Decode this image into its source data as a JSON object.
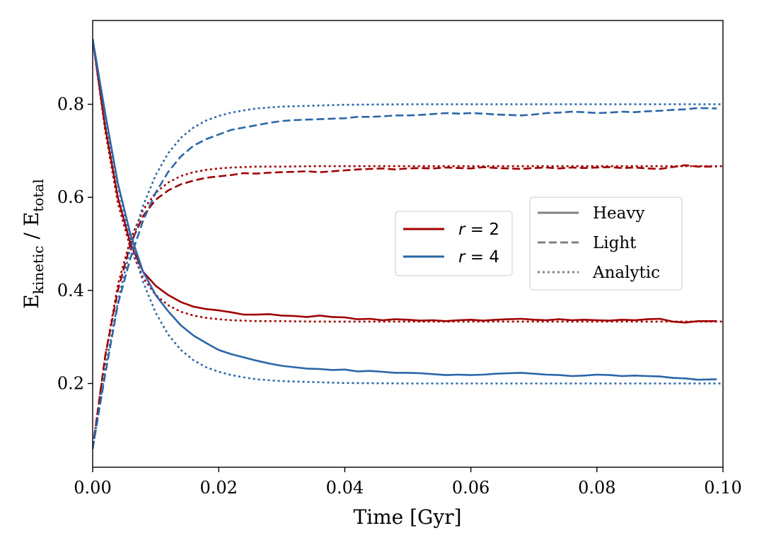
{
  "chart_data": {
    "type": "line",
    "xlabel": "Time [Gyr]",
    "ylabel": {
      "prefix": "E",
      "sub1": "kinetic",
      "sep": " / E",
      "sub2": "total"
    },
    "xlim": [
      0.0,
      0.1
    ],
    "ylim": [
      0.02,
      0.98
    ],
    "xticks": [
      0.0,
      0.02,
      0.04,
      0.06,
      0.08,
      0.1
    ],
    "xtick_labels": [
      "0.00",
      "0.02",
      "0.04",
      "0.06",
      "0.08",
      "0.10"
    ],
    "yticks": [
      0.2,
      0.4,
      0.6,
      0.8
    ],
    "ytick_labels": [
      "0.2",
      "0.4",
      "0.6",
      "0.8"
    ],
    "grid": false,
    "colors": {
      "r2": "#a00000",
      "r4": "#2a66a8",
      "style_key": "#808080"
    },
    "legend_ratio": {
      "placement": "center",
      "entries": [
        {
          "series": "r2",
          "prefix": "r",
          "value": " = 2"
        },
        {
          "series": "r4",
          "prefix": "r",
          "value": " = 4"
        }
      ]
    },
    "legend_style": {
      "placement": "center-right",
      "entries": [
        {
          "style": "solid",
          "label": "Heavy"
        },
        {
          "style": "dashed",
          "label": "Light"
        },
        {
          "style": "dotted",
          "label": "Analytic"
        }
      ]
    },
    "series": [
      {
        "id": "r2-heavy",
        "group": "r2",
        "style": "solid",
        "x": [
          0.0,
          0.002,
          0.004,
          0.006,
          0.008,
          0.01,
          0.012,
          0.014,
          0.016,
          0.018,
          0.02,
          0.022,
          0.024,
          0.026,
          0.028,
          0.03,
          0.032,
          0.034,
          0.036,
          0.038,
          0.04,
          0.042,
          0.044,
          0.046,
          0.048,
          0.05,
          0.052,
          0.054,
          0.056,
          0.058,
          0.06,
          0.062,
          0.064,
          0.066,
          0.068,
          0.07,
          0.072,
          0.074,
          0.076,
          0.078,
          0.08,
          0.082,
          0.084,
          0.086,
          0.088,
          0.09,
          0.092,
          0.094,
          0.096,
          0.099
        ],
        "y": [
          0.94,
          0.75,
          0.6,
          0.5,
          0.44,
          0.41,
          0.39,
          0.375,
          0.365,
          0.36,
          0.357,
          0.353,
          0.348,
          0.348,
          0.349,
          0.346,
          0.345,
          0.343,
          0.346,
          0.343,
          0.342,
          0.338,
          0.339,
          0.336,
          0.338,
          0.337,
          0.335,
          0.336,
          0.334,
          0.336,
          0.337,
          0.335,
          0.337,
          0.338,
          0.339,
          0.337,
          0.336,
          0.338,
          0.336,
          0.337,
          0.336,
          0.335,
          0.337,
          0.336,
          0.338,
          0.339,
          0.333,
          0.331,
          0.334,
          0.334
        ]
      },
      {
        "id": "r2-light",
        "group": "r2",
        "style": "dashed",
        "x": [
          0.0,
          0.002,
          0.004,
          0.006,
          0.008,
          0.01,
          0.012,
          0.014,
          0.016,
          0.018,
          0.02,
          0.022,
          0.024,
          0.026,
          0.028,
          0.03,
          0.032,
          0.034,
          0.036,
          0.038,
          0.04,
          0.042,
          0.044,
          0.046,
          0.048,
          0.05,
          0.052,
          0.054,
          0.056,
          0.058,
          0.06,
          0.062,
          0.064,
          0.066,
          0.068,
          0.07,
          0.072,
          0.074,
          0.076,
          0.078,
          0.08,
          0.082,
          0.084,
          0.086,
          0.088,
          0.09,
          0.092,
          0.094,
          0.096,
          0.099
        ],
        "y": [
          0.06,
          0.26,
          0.4,
          0.5,
          0.56,
          0.595,
          0.615,
          0.628,
          0.636,
          0.642,
          0.645,
          0.648,
          0.652,
          0.651,
          0.653,
          0.654,
          0.655,
          0.656,
          0.654,
          0.656,
          0.658,
          0.66,
          0.661,
          0.662,
          0.66,
          0.662,
          0.663,
          0.662,
          0.664,
          0.663,
          0.662,
          0.665,
          0.663,
          0.662,
          0.661,
          0.663,
          0.664,
          0.662,
          0.664,
          0.663,
          0.664,
          0.665,
          0.663,
          0.664,
          0.662,
          0.661,
          0.665,
          0.669,
          0.666,
          0.666
        ]
      },
      {
        "id": "r2-analytic",
        "group": "r2",
        "style": "dotted",
        "x": [
          0.0,
          0.002,
          0.004,
          0.006,
          0.008,
          0.01,
          0.012,
          0.014,
          0.016,
          0.018,
          0.02,
          0.022,
          0.024,
          0.026,
          0.028,
          0.03,
          0.035,
          0.04,
          0.05,
          0.06,
          0.07,
          0.08,
          0.09,
          0.1
        ],
        "y": [
          0.94,
          0.742,
          0.588,
          0.49,
          0.427,
          0.39,
          0.368,
          0.354,
          0.346,
          0.341,
          0.338,
          0.336,
          0.335,
          0.334,
          0.334,
          0.334,
          0.333,
          0.333,
          0.333,
          0.333,
          0.333,
          0.333,
          0.333,
          0.333
        ]
      },
      {
        "id": "r2-analytic-light",
        "group": "r2",
        "style": "dotted",
        "x": [
          0.0,
          0.002,
          0.004,
          0.006,
          0.008,
          0.01,
          0.012,
          0.014,
          0.016,
          0.018,
          0.02,
          0.022,
          0.024,
          0.026,
          0.028,
          0.03,
          0.035,
          0.04,
          0.05,
          0.06,
          0.07,
          0.08,
          0.09,
          0.1
        ],
        "y": [
          0.06,
          0.258,
          0.412,
          0.51,
          0.573,
          0.61,
          0.632,
          0.646,
          0.654,
          0.659,
          0.662,
          0.664,
          0.665,
          0.666,
          0.666,
          0.666,
          0.667,
          0.667,
          0.667,
          0.667,
          0.667,
          0.667,
          0.667,
          0.667
        ]
      },
      {
        "id": "r4-heavy",
        "group": "r4",
        "style": "solid",
        "x": [
          0.0,
          0.002,
          0.004,
          0.006,
          0.008,
          0.01,
          0.012,
          0.014,
          0.016,
          0.018,
          0.02,
          0.022,
          0.024,
          0.026,
          0.028,
          0.03,
          0.032,
          0.034,
          0.036,
          0.038,
          0.04,
          0.042,
          0.044,
          0.046,
          0.048,
          0.05,
          0.052,
          0.054,
          0.056,
          0.058,
          0.06,
          0.062,
          0.064,
          0.066,
          0.068,
          0.07,
          0.072,
          0.074,
          0.076,
          0.078,
          0.08,
          0.082,
          0.084,
          0.086,
          0.088,
          0.09,
          0.092,
          0.094,
          0.096,
          0.099
        ],
        "y": [
          0.94,
          0.78,
          0.63,
          0.52,
          0.44,
          0.39,
          0.355,
          0.325,
          0.303,
          0.287,
          0.272,
          0.263,
          0.256,
          0.249,
          0.243,
          0.238,
          0.235,
          0.232,
          0.231,
          0.229,
          0.23,
          0.226,
          0.227,
          0.225,
          0.223,
          0.223,
          0.222,
          0.22,
          0.218,
          0.219,
          0.218,
          0.219,
          0.221,
          0.222,
          0.223,
          0.221,
          0.219,
          0.218,
          0.216,
          0.217,
          0.219,
          0.218,
          0.216,
          0.217,
          0.216,
          0.215,
          0.212,
          0.211,
          0.208,
          0.209
        ]
      },
      {
        "id": "r4-light",
        "group": "r4",
        "style": "dashed",
        "x": [
          0.0,
          0.002,
          0.004,
          0.006,
          0.008,
          0.01,
          0.012,
          0.014,
          0.016,
          0.018,
          0.02,
          0.022,
          0.024,
          0.026,
          0.028,
          0.03,
          0.032,
          0.034,
          0.036,
          0.038,
          0.04,
          0.042,
          0.044,
          0.046,
          0.048,
          0.05,
          0.052,
          0.054,
          0.056,
          0.058,
          0.06,
          0.062,
          0.064,
          0.066,
          0.068,
          0.07,
          0.072,
          0.074,
          0.076,
          0.078,
          0.08,
          0.082,
          0.084,
          0.086,
          0.088,
          0.09,
          0.092,
          0.094,
          0.096,
          0.099
        ],
        "y": [
          0.06,
          0.22,
          0.37,
          0.47,
          0.55,
          0.61,
          0.655,
          0.688,
          0.711,
          0.725,
          0.735,
          0.745,
          0.75,
          0.755,
          0.76,
          0.764,
          0.766,
          0.767,
          0.768,
          0.769,
          0.77,
          0.773,
          0.773,
          0.774,
          0.776,
          0.776,
          0.777,
          0.779,
          0.781,
          0.78,
          0.781,
          0.78,
          0.778,
          0.777,
          0.776,
          0.778,
          0.781,
          0.782,
          0.784,
          0.783,
          0.781,
          0.782,
          0.784,
          0.783,
          0.785,
          0.786,
          0.788,
          0.789,
          0.792,
          0.791
        ]
      },
      {
        "id": "r4-analytic",
        "group": "r4",
        "style": "dotted",
        "x": [
          0.0,
          0.002,
          0.004,
          0.006,
          0.008,
          0.01,
          0.012,
          0.014,
          0.016,
          0.018,
          0.02,
          0.022,
          0.024,
          0.026,
          0.028,
          0.03,
          0.035,
          0.04,
          0.05,
          0.06,
          0.07,
          0.08,
          0.09,
          0.1
        ],
        "y": [
          0.94,
          0.768,
          0.625,
          0.508,
          0.418,
          0.352,
          0.305,
          0.272,
          0.25,
          0.235,
          0.225,
          0.218,
          0.213,
          0.209,
          0.207,
          0.205,
          0.203,
          0.201,
          0.2,
          0.2,
          0.2,
          0.2,
          0.2,
          0.2
        ]
      },
      {
        "id": "r4-analytic-light",
        "group": "r4",
        "style": "dotted",
        "x": [
          0.0,
          0.002,
          0.004,
          0.006,
          0.008,
          0.01,
          0.012,
          0.014,
          0.016,
          0.018,
          0.02,
          0.022,
          0.024,
          0.026,
          0.028,
          0.03,
          0.035,
          0.04,
          0.05,
          0.06,
          0.07,
          0.08,
          0.09,
          0.1
        ],
        "y": [
          0.06,
          0.232,
          0.375,
          0.492,
          0.582,
          0.648,
          0.695,
          0.728,
          0.75,
          0.765,
          0.775,
          0.782,
          0.787,
          0.791,
          0.793,
          0.795,
          0.797,
          0.799,
          0.8,
          0.8,
          0.8,
          0.8,
          0.8,
          0.8
        ]
      }
    ]
  }
}
